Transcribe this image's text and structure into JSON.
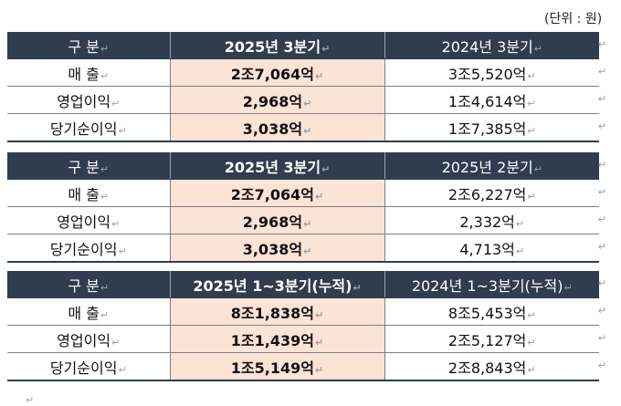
{
  "unit_label": "(단위 : 원)",
  "tables": [
    {
      "header": [
        "구 분",
        "2025년 3분기",
        "2024년 3분기"
      ],
      "rows": [
        [
          "매 출",
          "2조7,064억",
          "3조5,520억"
        ],
        [
          "영업이익",
          "2,968억",
          "1조4,614억"
        ],
        [
          "당기순이익",
          "3,038억",
          "1조7,385억"
        ]
      ]
    },
    {
      "header": [
        "구 분",
        "2025년 3분기",
        "2025년 2분기"
      ],
      "rows": [
        [
          "매 출",
          "2조7,064억",
          "2조6,227억"
        ],
        [
          "영업이익",
          "2,968억",
          "2,332억"
        ],
        [
          "당기순이익",
          "3,038억",
          "4,713억"
        ]
      ]
    },
    {
      "header": [
        "구 분",
        "2025년 1~3분기(누적)",
        "2024년 1~3분기(누적)"
      ],
      "rows": [
        [
          "매 출",
          "8조1,838억",
          "8조5,453억"
        ],
        [
          "영업이익",
          "1조1,439억",
          "2조5,127억"
        ],
        [
          "당기순이익",
          "1조5,149억",
          "2조8,843억"
        ]
      ]
    }
  ],
  "colors": {
    "header_bg": "#2f3d4f",
    "highlight_bg": "#fbe3d6"
  }
}
